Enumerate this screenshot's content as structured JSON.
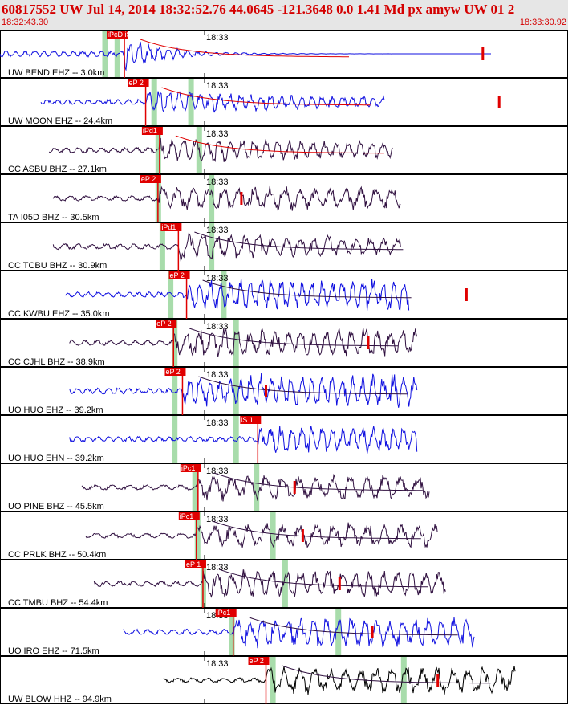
{
  "header": {
    "title": "60817552 UW Jul 14, 2014 18:32:52.76   44.0645 -121.3648  0.0 1.41 Md px amyw UW 01   2",
    "start_time": "18:32:43.30",
    "end_time": "18:33:30.92",
    "minute_label": "18:33"
  },
  "chart_data": {
    "type": "seismogram",
    "colors": {
      "pick": "#e00000",
      "coda": "#e00000",
      "window": "#a8dcab",
      "blue": "#1010e0",
      "dark": "#301040",
      "black": "#000000"
    },
    "traces": [
      {
        "label": "UW BEND EHZ -- 3.0km",
        "color": "blue",
        "pick": "iPcD iS 1",
        "pick_t": 15.2,
        "s_t": 19.5,
        "green": [
          12.5,
          14.0
        ],
        "start": 0.0,
        "end": 60.0,
        "amp": 0.45,
        "freq": 1.6,
        "decay": 0.18,
        "coda": true,
        "coda_c": "red",
        "end_marks": [
          59.0
        ]
      },
      {
        "label": "UW MOON EHZ -- 24.4km",
        "color": "blue",
        "pick": "eP 2",
        "pick_t": 17.8,
        "green": [
          18.5,
          23.0
        ],
        "start": 5.0,
        "end": 47.0,
        "amp": 0.35,
        "freq": 1.5,
        "decay": 0.03,
        "coda": true,
        "coda_c": "red",
        "end_marks": [
          61.0
        ]
      },
      {
        "label": "CC ASBU BHZ -- 27.1km",
        "color": "dark",
        "pick": "iPd1",
        "pick_t": 19.5,
        "green": [
          19.0,
          24.0
        ],
        "start": 6.0,
        "end": 48.0,
        "amp": 0.38,
        "freq": 1.3,
        "decay": 0.02,
        "coda": true,
        "coda_c": "red",
        "end_marks": []
      },
      {
        "label": "TA I05D BHZ -- 30.5km",
        "color": "dark",
        "pick": "eP 2",
        "pick_t": 19.3,
        "green": [
          19.0,
          25.5
        ],
        "start": 6.5,
        "end": 49.0,
        "amp": 0.32,
        "freq": 1.0,
        "decay": 0.0,
        "coda": false,
        "end_marks": [
          29.5
        ]
      },
      {
        "label": "CC TCBU BHZ -- 30.9km",
        "color": "dark",
        "pick": "iPd1",
        "pick_t": 21.8,
        "green": [
          19.5,
          25.5
        ],
        "start": 6.5,
        "end": 49.0,
        "amp": 0.4,
        "freq": 1.1,
        "decay": 0.02,
        "coda": true,
        "coda_c": "dark",
        "end_marks": []
      },
      {
        "label": "CC KWBU EHZ -- 35.0km",
        "color": "blue",
        "pick": "eP 2",
        "pick_t": 22.8,
        "green": [
          20.5,
          27.0
        ],
        "start": 8.0,
        "end": 50.0,
        "amp": 0.4,
        "freq": 1.5,
        "decay": 0.0,
        "coda": true,
        "coda_c": "dark",
        "end_marks": [
          57.0
        ]
      },
      {
        "label": "CC CJHL BHZ -- 38.9km",
        "color": "dark",
        "pick": "eP 2",
        "pick_t": 21.2,
        "green": [
          21.0,
          28.5
        ],
        "start": 8.5,
        "end": 51.0,
        "amp": 0.38,
        "freq": 1.2,
        "decay": 0.0,
        "coda": true,
        "coda_c": "dark",
        "end_marks": [
          45.0
        ]
      },
      {
        "label": "UO HUO EHZ -- 39.2km",
        "color": "blue",
        "pick": "eP 2",
        "pick_t": 22.3,
        "green": [
          21.0,
          28.5
        ],
        "start": 8.5,
        "end": 51.0,
        "amp": 0.42,
        "freq": 1.5,
        "decay": 0.0,
        "coda": true,
        "coda_c": "dark",
        "end_marks": [
          32.5
        ]
      },
      {
        "label": "UO HUO EHN -- 39.2km",
        "color": "blue",
        "pick": "iS 1",
        "pick_t": 31.5,
        "green": [
          21.0,
          28.5
        ],
        "start": 8.5,
        "end": 51.0,
        "amp": 0.36,
        "freq": 1.5,
        "decay": 0.0,
        "coda": false,
        "end_marks": []
      },
      {
        "label": "UO PINE BHZ -- 45.5km",
        "color": "dark",
        "pick": "iPc1",
        "pick_t": 24.2,
        "green": [
          23.5,
          31.0
        ],
        "start": 10.0,
        "end": 52.5,
        "amp": 0.33,
        "freq": 0.9,
        "decay": 0.0,
        "coda": true,
        "coda_c": "dark",
        "end_marks": [
          36.0
        ]
      },
      {
        "label": "CC PRLK BHZ -- 50.4km",
        "color": "dark",
        "pick": "iPc1",
        "pick_t": 24.0,
        "green": [
          23.8,
          33.0
        ],
        "start": 10.5,
        "end": 53.5,
        "amp": 0.32,
        "freq": 0.9,
        "decay": 0.0,
        "coda": true,
        "coda_c": "dark",
        "end_marks": [
          37.0
        ]
      },
      {
        "label": "CC TMBU BHZ -- 54.4km",
        "color": "dark",
        "pick": "eP 1",
        "pick_t": 24.8,
        "green": [
          24.5,
          34.5
        ],
        "start": 11.5,
        "end": 54.5,
        "amp": 0.36,
        "freq": 1.1,
        "decay": 0.0,
        "coda": true,
        "coda_c": "dark",
        "end_marks": [
          41.5
        ]
      },
      {
        "label": "UO IRO EHZ -- 71.5km",
        "color": "blue",
        "pick": "iPc1",
        "pick_t": 28.5,
        "green": [
          28.0,
          41.0
        ],
        "start": 15.0,
        "end": 58.0,
        "amp": 0.4,
        "freq": 1.2,
        "decay": 0.0,
        "coda": true,
        "coda_c": "dark",
        "end_marks": [
          45.5
        ]
      },
      {
        "label": "UW BLOW HHZ -- 94.9km",
        "color": "black",
        "pick": "eP 2",
        "pick_t": 32.5,
        "green": [
          33.0,
          49.0
        ],
        "start": 20.0,
        "end": 63.0,
        "amp": 0.35,
        "freq": 1.0,
        "decay": 0.0,
        "coda": true,
        "coda_c": "dark",
        "end_marks": [
          53.5
        ]
      }
    ]
  }
}
